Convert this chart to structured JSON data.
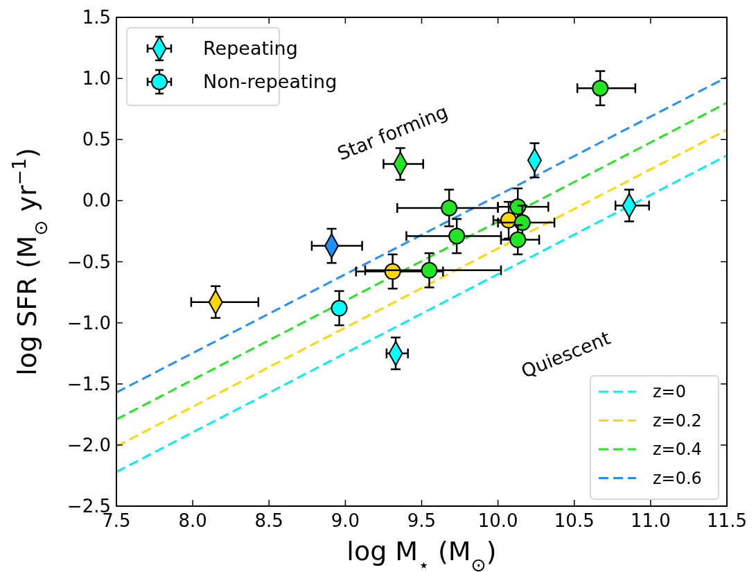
{
  "chart_data": {
    "type": "scatter",
    "xlabel": "log M$_{⋆}$ (M$_{⊙}$)",
    "ylabel": "log SFR (M$_{⊙}$ yr$^{−1}$)",
    "xlim": [
      7.5,
      11.5
    ],
    "xticks": [
      7.5,
      {
        "value": 8,
        "label": "8.0"
      },
      8.5,
      {
        "value": 9,
        "label": "9.0"
      },
      9.5,
      {
        "value": 10,
        "label": "10.0"
      },
      10.5,
      {
        "value": 11,
        "label": "11.0"
      },
      11.5
    ],
    "ylim": [
      -2.5,
      1.5
    ],
    "yticks": [
      {
        "value": -2.5,
        "label": "−2.5"
      },
      {
        "value": -2.0,
        "label": "−2.0"
      },
      {
        "value": -1.5,
        "label": "−1.5"
      },
      {
        "value": -1.0,
        "label": "−1.0"
      },
      {
        "value": -0.5,
        "label": "−0.5"
      },
      {
        "value": 0.0,
        "label": "0.0"
      },
      {
        "value": 0.5,
        "label": "0.5"
      },
      {
        "value": 1.0,
        "label": "1.0"
      },
      {
        "value": 1.5,
        "label": "1.5"
      }
    ],
    "grid": false,
    "legend": "top left",
    "annotations": [
      "Star forming",
      "Quiescent"
    ],
    "series": [
      {
        "name": "z=0",
        "type": "line",
        "color": "#00f0f0",
        "marker": "none",
        "line_style": "dashed",
        "x": [
          7.5,
          11.5
        ],
        "values": [
          -2.22,
          0.37
        ]
      },
      {
        "name": "z=0.2",
        "type": "line",
        "color": "#ffd700",
        "marker": "none",
        "line_style": "dashed",
        "x": [
          7.5,
          11.5
        ],
        "values": [
          -2.01,
          0.58
        ]
      },
      {
        "name": "z=0.4",
        "type": "line",
        "color": "#22e622",
        "marker": "none",
        "line_style": "dashed",
        "x": [
          7.5,
          11.5
        ],
        "values": [
          -1.79,
          0.8
        ]
      },
      {
        "name": "z=0.6",
        "type": "line",
        "color": "#1e90ff",
        "marker": "none",
        "line_style": "dashed",
        "x": [
          7.5,
          11.5
        ],
        "values": [
          -1.57,
          1.01
        ]
      },
      {
        "name": "Repeating",
        "color": "#00ffff",
        "marker": "diamond",
        "x": [
          8.15,
          8.91,
          9.36,
          9.33,
          10.24,
          10.86
        ],
        "values": [
          -0.83,
          -0.37,
          0.3,
          -1.25,
          0.33,
          -0.04
        ],
        "colors": [
          "#ffd700",
          "#1e90ff",
          "#22e622",
          "#00ffff",
          "#00ffff",
          "#00ffff"
        ],
        "errors": [
          0.13,
          0.14,
          0.13,
          0.13,
          0.14,
          0.13
        ],
        "xerrors": [
          [
            7.99,
            8.43
          ],
          [
            8.78,
            9.11
          ],
          [
            9.25,
            9.51
          ],
          [
            9.27,
            9.41
          ],
          null,
          [
            10.77,
            10.99
          ]
        ]
      },
      {
        "name": "Non-repeating",
        "color": "#00ffff",
        "marker": "circle",
        "x": [
          8.96,
          9.31,
          9.55,
          9.68,
          9.73,
          10.13,
          10.07,
          10.16,
          10.13,
          10.67
        ],
        "values": [
          -0.88,
          -0.58,
          -0.57,
          -0.06,
          -0.29,
          -0.05,
          -0.16,
          -0.18,
          -0.32,
          0.92
        ],
        "colors": [
          "#00ffff",
          "#ffd700",
          "#22e622",
          "#22e622",
          "#22e622",
          "#22e622",
          "#ffd700",
          "#22e622",
          "#22e622",
          "#22e622"
        ],
        "errors": [
          0.14,
          0.14,
          0.14,
          0.15,
          0.14,
          0.15,
          0.15,
          0.14,
          0.12,
          0.14
        ],
        "xerrors": [
          null,
          [
            9.07,
            9.64
          ],
          [
            9.13,
            10.02
          ],
          [
            9.34,
            10.0
          ],
          [
            9.4,
            10.02
          ],
          [
            10.0,
            10.33
          ],
          [
            9.97,
            10.07
          ],
          [
            10.0,
            10.37
          ],
          [
            10.02,
            10.27
          ],
          [
            10.52,
            10.9
          ]
        ]
      }
    ]
  }
}
